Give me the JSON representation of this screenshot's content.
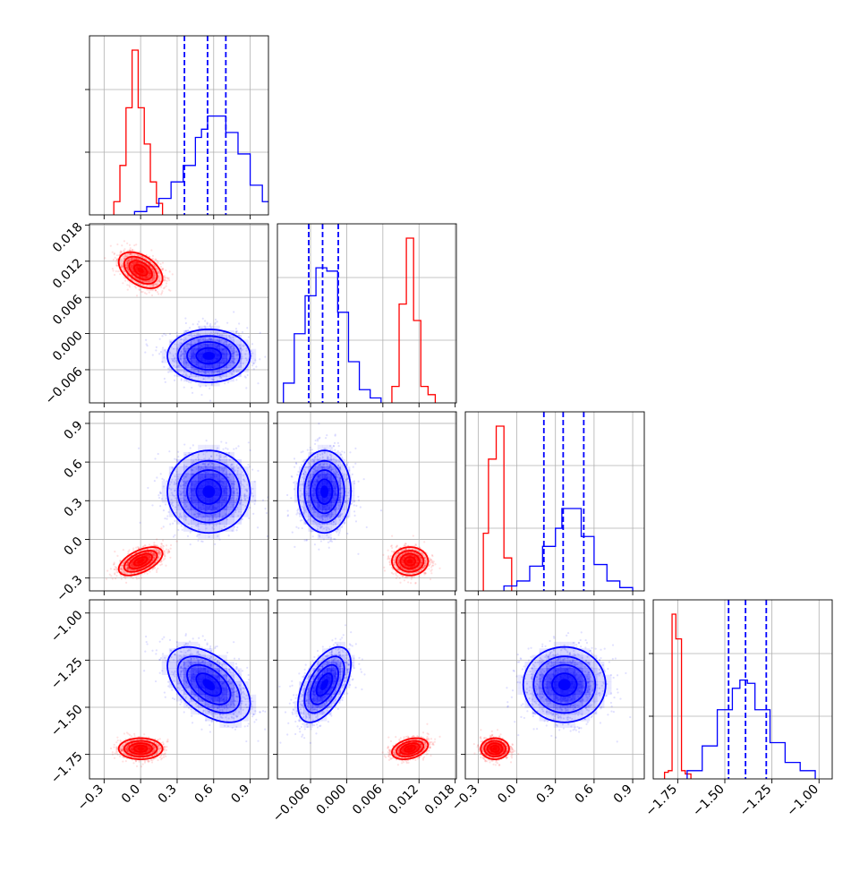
{
  "chart_data": {
    "type": "corner",
    "n_params": 4,
    "series": [
      {
        "color": "#ff0000",
        "mean": [
          0.0,
          0.0105,
          -0.17,
          -1.72
        ],
        "sd": [
          0.09,
          0.0015,
          0.055,
          0.028
        ],
        "corr": {
          "0-1": -0.45,
          "0-2": 0.55,
          "0-3": 0.0,
          "1-2": 0.0,
          "1-3": 0.35,
          "2-3": 0.0
        },
        "hist": [
          [
            0.08,
            0.3,
            0.65,
            1.0,
            0.65,
            0.43,
            0.2,
            0.07
          ],
          [
            0.1,
            0.6,
            1.0,
            0.5,
            0.1,
            0.05
          ],
          [
            0.35,
            0.8,
            1.0,
            0.2
          ],
          [
            0.04,
            0.05,
            1.0,
            0.85,
            0.05,
            0.03
          ]
        ],
        "hist_edges": [
          [
            -0.22,
            -0.17,
            -0.12,
            -0.07,
            -0.02,
            0.03,
            0.08,
            0.13,
            0.18
          ],
          [
            0.0075,
            0.0087,
            0.0099,
            0.0111,
            0.0123,
            0.0135,
            0.0147
          ],
          [
            -0.26,
            -0.22,
            -0.16,
            -0.1,
            -0.04
          ],
          [
            -1.82,
            -1.8,
            -1.78,
            -1.76,
            -1.73,
            -1.71,
            -1.68
          ]
        ]
      },
      {
        "color": "#0000ff",
        "mean": [
          0.56,
          -0.0037,
          0.37,
          -1.38
        ],
        "sd": [
          0.17,
          0.0022,
          0.16,
          0.1
        ],
        "corr": {
          "0-1": 0.0,
          "0-2": 0.0,
          "0-3": -0.5,
          "1-2": 0.0,
          "1-3": 0.55,
          "2-3": 0.0
        },
        "hist": [
          [
            0.02,
            0.05,
            0.1,
            0.2,
            0.3,
            0.47,
            0.52,
            0.6,
            0.6,
            0.5,
            0.37,
            0.18,
            0.08,
            0.02
          ],
          [
            0.12,
            0.42,
            0.65,
            0.82,
            0.8,
            0.55,
            0.25,
            0.08,
            0.03
          ],
          [
            0.03,
            0.06,
            0.15,
            0.27,
            0.38,
            0.5,
            0.5,
            0.33,
            0.16,
            0.06,
            0.02
          ],
          [
            0.05,
            0.2,
            0.42,
            0.55,
            0.6,
            0.58,
            0.42,
            0.22,
            0.1,
            0.05
          ]
        ],
        "hist_edges": [
          [
            -0.05,
            0.05,
            0.15,
            0.25,
            0.35,
            0.45,
            0.5,
            0.55,
            0.6,
            0.7,
            0.8,
            0.9,
            1.0,
            1.1,
            1.2
          ],
          [
            -0.0105,
            -0.0087,
            -0.0069,
            -0.0051,
            -0.0033,
            -0.0015,
            0.0003,
            0.0021,
            0.0039,
            0.0057
          ],
          [
            -0.1,
            0.0,
            0.1,
            0.2,
            0.3,
            0.35,
            0.4,
            0.5,
            0.6,
            0.7,
            0.8,
            0.9
          ],
          [
            -1.7,
            -1.62,
            -1.54,
            -1.46,
            -1.42,
            -1.38,
            -1.34,
            -1.26,
            -1.18,
            -1.1,
            -1.02
          ]
        ],
        "quantiles": [
          [
            0.36,
            0.55,
            0.7
          ],
          [
            -0.0063,
            -0.004,
            -0.0014
          ],
          [
            0.21,
            0.36,
            0.52
          ],
          [
            -1.48,
            -1.39,
            -1.28
          ]
        ]
      }
    ],
    "axes": [
      {
        "range": [
          -0.42,
          1.05
        ],
        "ticks": [
          -0.3,
          0.0,
          0.3,
          0.6,
          0.9
        ],
        "tick_labels": [
          "−0.3",
          "0.0",
          "0.3",
          "0.6",
          "0.9"
        ]
      },
      {
        "range": [
          -0.0115,
          0.0182
        ],
        "ticks": [
          -0.006,
          0.0,
          0.006,
          0.012,
          0.018
        ],
        "tick_labels": [
          "−0.006",
          "0.000",
          "0.006",
          "0.012",
          "0.018"
        ]
      },
      {
        "range": [
          -0.4,
          0.99
        ],
        "ticks": [
          -0.3,
          0.0,
          0.3,
          0.6,
          0.9
        ],
        "tick_labels": [
          "−0.3",
          "0.0",
          "0.3",
          "0.6",
          "0.9"
        ]
      },
      {
        "range": [
          -1.88,
          -0.93
        ],
        "ticks": [
          -1.75,
          -1.5,
          -1.25,
          -1.0
        ],
        "tick_labels": [
          "−1.75",
          "−1.50",
          "−1.25",
          "−1.00"
        ]
      }
    ],
    "grid": true
  }
}
